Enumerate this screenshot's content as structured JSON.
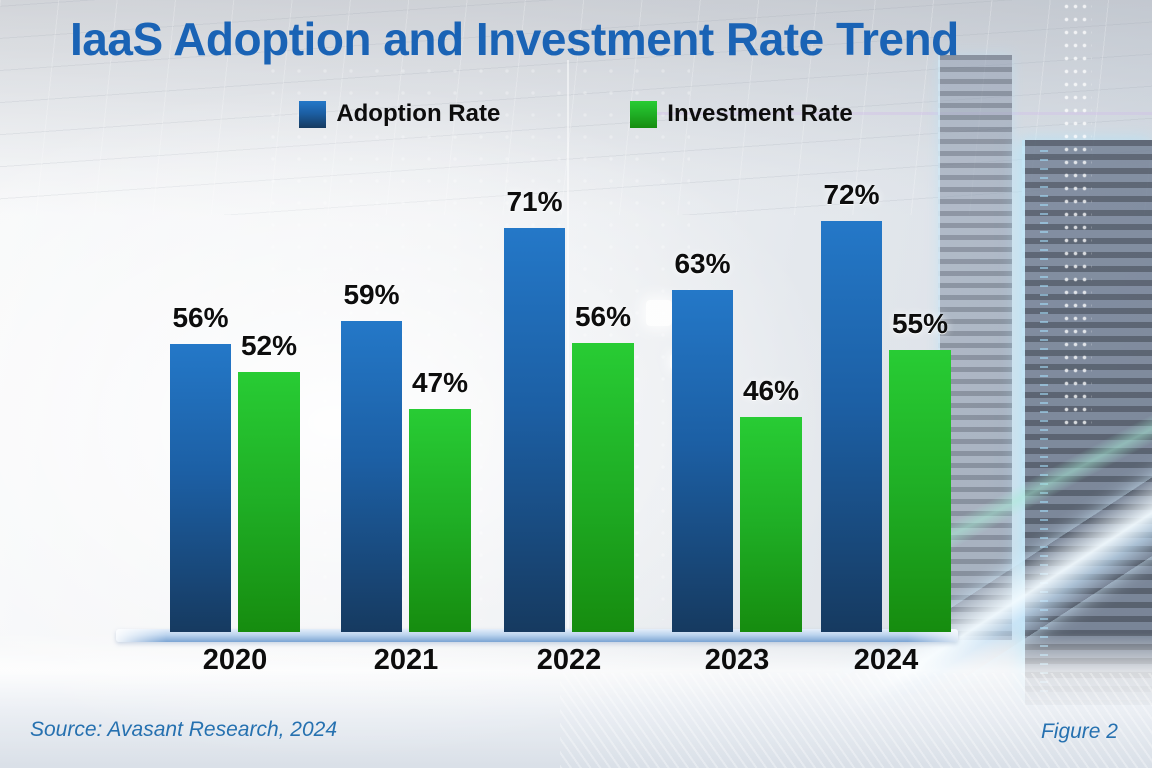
{
  "page": {
    "title": "IaaS Adoption and Investment Rate Trend"
  },
  "legend": [
    {
      "label": "Adoption Rate",
      "color": "#1e6fbe"
    },
    {
      "label": "Investment Rate",
      "color": "#22c52c"
    }
  ],
  "footer": {
    "source": "Source: Avasant Research, 2024",
    "figure": "Figure 2"
  },
  "colors": {
    "title": "#1a63b5",
    "footer_text": "#2671b0",
    "label": "#0d0d0d",
    "adoption_top": "#2478c8",
    "adoption_mid": "#1c5fa4",
    "adoption_bottom": "#163a60",
    "investment_top": "#28cc34",
    "investment_mid": "#1fae25",
    "investment_bottom": "#168c0f",
    "axis_light": "#bcd4ee",
    "axis_dark": "#7ba4d3"
  },
  "chart_data": {
    "type": "bar",
    "title": "IaaS Adoption and Investment Rate Trend",
    "categories": [
      "2020",
      "2021",
      "2022",
      "2023",
      "2024"
    ],
    "series": [
      {
        "name": "Adoption Rate",
        "color": "#1e6fbe",
        "values": [
          56,
          59,
          71,
          63,
          72
        ]
      },
      {
        "name": "Investment Rate",
        "color": "#22c52c",
        "values": [
          52,
          47,
          56,
          46,
          55
        ]
      }
    ],
    "value_suffix": "%",
    "value_labels": true,
    "xlabel": "",
    "ylabel": "",
    "ylim": [
      0,
      80
    ],
    "grid": false,
    "legend_position": "top",
    "source": "Source: Avasant Research, 2024",
    "figure": "Figure 2"
  }
}
